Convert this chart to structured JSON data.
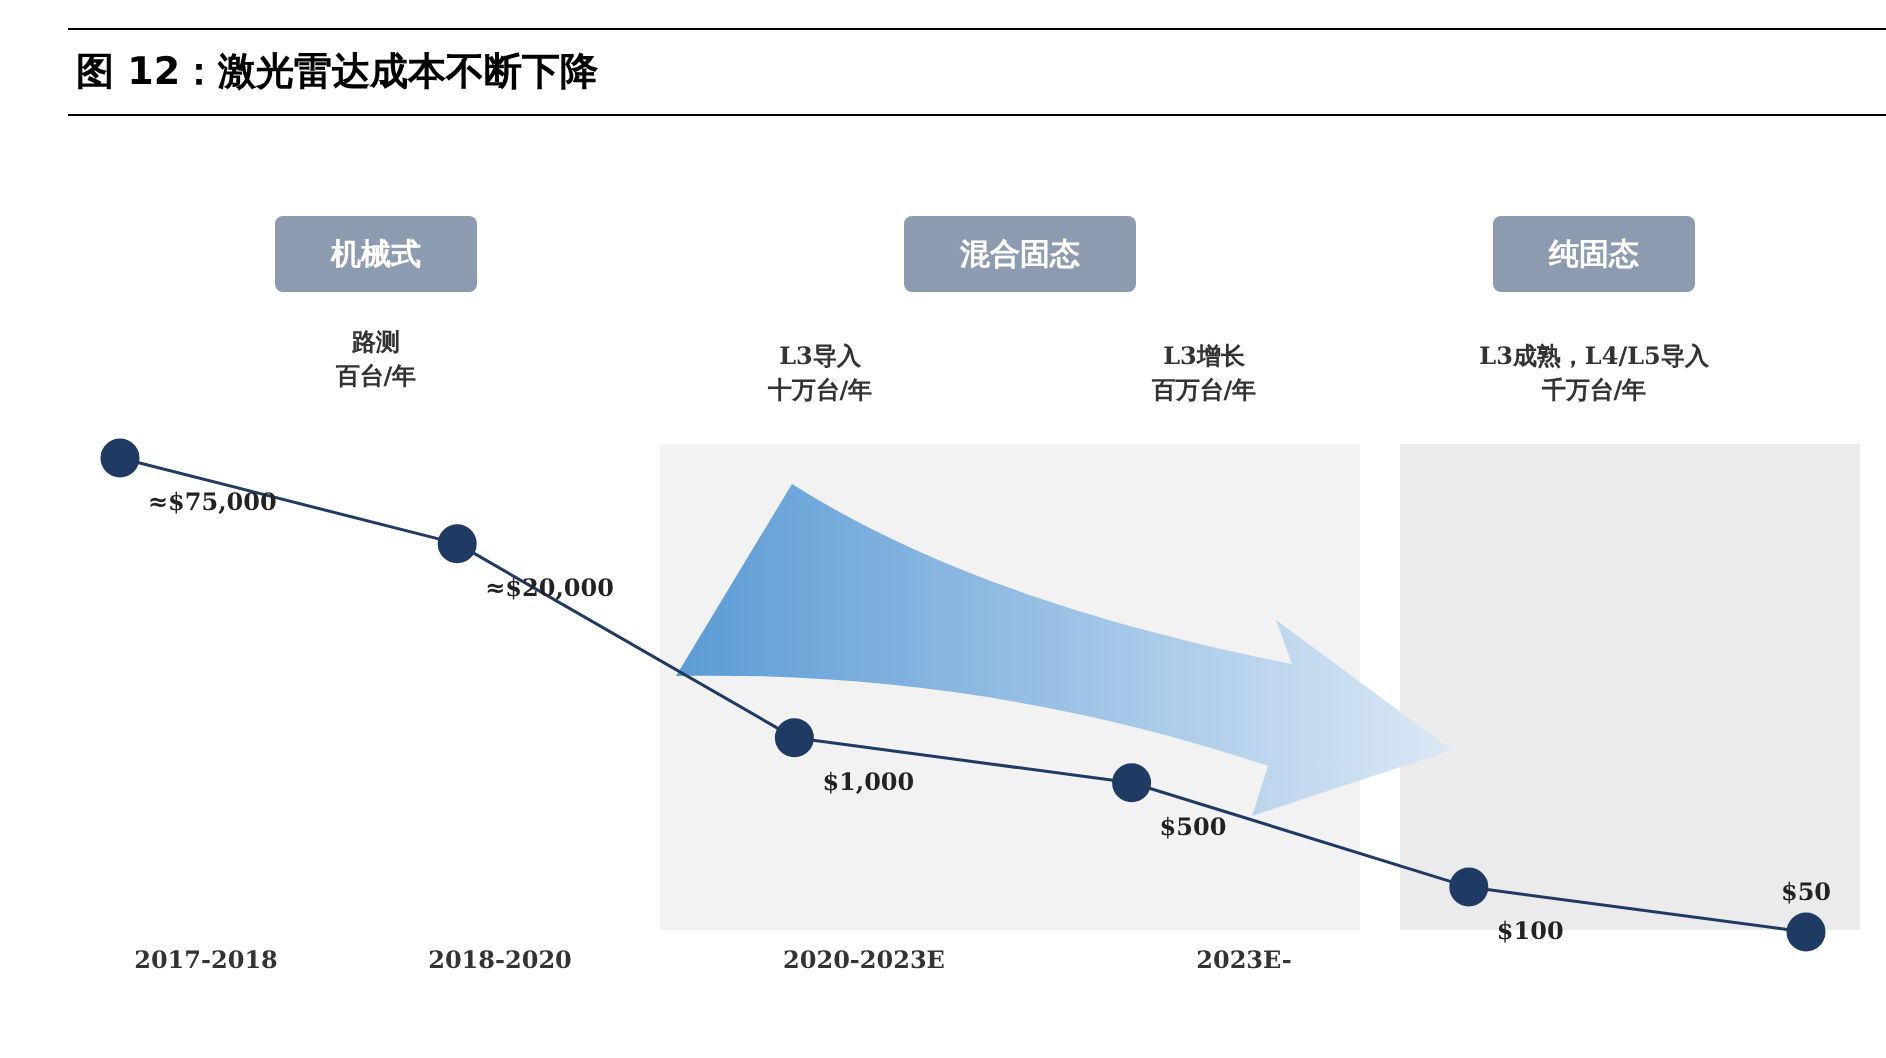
{
  "chart_data": {
    "type": "line",
    "title": "图 12：激光雷达成本不断下降",
    "categories": [
      null,
      null,
      null,
      null,
      null,
      null
    ],
    "series": [
      {
        "color": "#1f3a63",
        "values": [
          75000,
          20000,
          1000,
          500,
          100,
          50
        ],
        "value_labels": [
          "≈$75,000",
          "≈$20,000",
          "$1,000",
          "$500",
          "$100",
          "$50"
        ]
      }
    ],
    "log": "y",
    "tick_labels": false,
    "marker": "circle",
    "line_style": "solid",
    "legend": false,
    "grid": false,
    "annotations": [
      "机械式",
      "混合固态",
      "纯固态",
      "路测",
      "百台/年",
      "L3导入",
      "十万台/年",
      "L3增长",
      "百万台/年",
      "L3成熟，L4/L5导入",
      "千万台/年",
      "2017-2018",
      "2018-2020",
      "2020-2023E",
      "2023E-"
    ]
  }
}
